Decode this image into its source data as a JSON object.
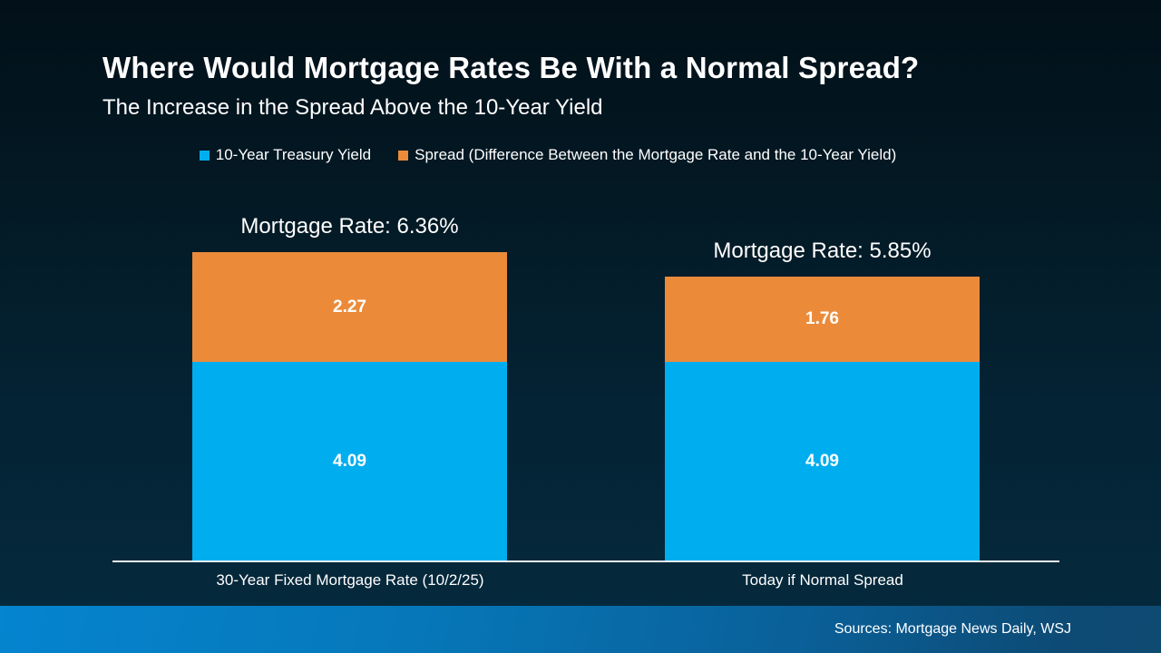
{
  "chart_data": {
    "type": "bar",
    "stacked": true,
    "title": "Where Would Mortgage Rates Be With a Normal Spread?",
    "subtitle": "The Increase in the Spread Above the 10-Year Yield",
    "categories": [
      "30-Year Fixed Mortgage Rate (10/2/25)",
      "Today if Normal Spread"
    ],
    "series": [
      {
        "name": "10-Year Treasury Yield",
        "color": "#00AEEF",
        "values": [
          4.09,
          4.09
        ]
      },
      {
        "name": "Spread (Difference Between the Mortgage Rate and the 10-Year Yield)",
        "color": "#EB8B3A",
        "values": [
          2.27,
          1.76
        ]
      }
    ],
    "bar_totals": [
      6.36,
      5.85
    ],
    "total_labels": [
      "Mortgage Rate: 6.36%",
      "Mortgage Rate: 5.85%"
    ],
    "legend_position": "top",
    "grid": false,
    "ylim": [
      0,
      7
    ]
  },
  "footer": {
    "sources_label": "Sources: Mortgage News Daily, WSJ"
  },
  "colors": {
    "background_top": "#021019",
    "background_bottom": "#05293C",
    "bar_blue": "#00AEEF",
    "bar_orange": "#EB8B3A",
    "footer_left": "#0584CF",
    "footer_right": "#0D4A74",
    "axis_line": "#E9EEF2",
    "text": "#FFFFFF"
  }
}
